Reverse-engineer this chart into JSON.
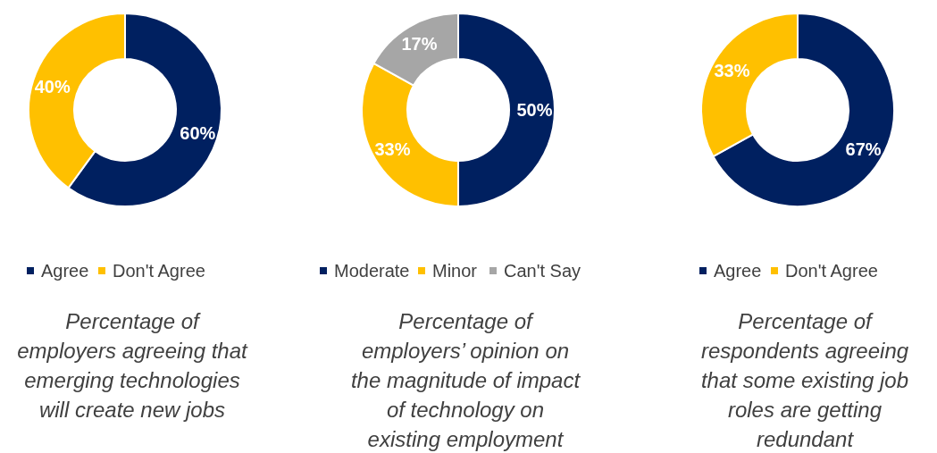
{
  "chart_data": [
    {
      "type": "donut",
      "title": "Percentage of\nemployers agreeing that\nemerging technologies\nwill create new jobs",
      "categories": [
        "Agree",
        "Don't Agree"
      ],
      "values": [
        60,
        40
      ],
      "value_labels": [
        "60%",
        "40%"
      ],
      "colors": [
        "#002060",
        "#ffc000"
      ],
      "legend": "bottom"
    },
    {
      "type": "donut",
      "title": "Percentage of\nemployers’ opinion on\nthe magnitude of impact\nof technology on\nexisting employment",
      "categories": [
        "Moderate",
        "Minor",
        "Can't Say"
      ],
      "values": [
        50,
        33,
        17
      ],
      "value_labels": [
        "50%",
        "33%",
        "17%"
      ],
      "colors": [
        "#002060",
        "#ffc000",
        "#a6a6a6"
      ],
      "legend": "bottom"
    },
    {
      "type": "donut",
      "title": "Percentage of\nrespondents agreeing\nthat some existing job\nroles are getting\nredundant",
      "categories": [
        "Agree",
        "Don't Agree"
      ],
      "values": [
        67,
        33
      ],
      "value_labels": [
        "67%",
        "33%"
      ],
      "colors": [
        "#002060",
        "#ffc000"
      ],
      "legend": "bottom"
    }
  ]
}
